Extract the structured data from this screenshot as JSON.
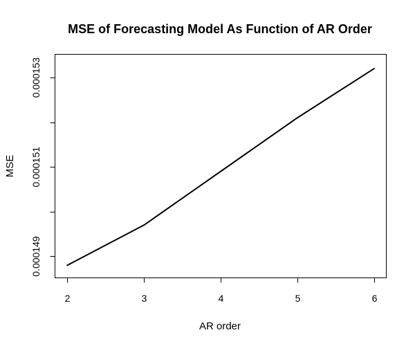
{
  "chart_data": {
    "type": "line",
    "title": "MSE of Forecasting Model As Function of AR Order",
    "xlabel": "AR order",
    "ylabel": "MSE",
    "x": [
      2,
      3,
      4,
      5,
      6
    ],
    "series": [
      {
        "values": [
          0.0001488,
          0.0001497,
          0.0001509,
          0.0001521,
          0.0001532
        ]
      }
    ],
    "xlim": [
      1.84,
      6.16
    ],
    "ylim": [
      0.00014852,
      0.00015352
    ],
    "xticks": [
      "2",
      "3",
      "4",
      "5",
      "6"
    ],
    "xtick_values": [
      2,
      3,
      4,
      5,
      6
    ],
    "yticks": [
      "0.000149",
      "0.000151",
      "0.000153"
    ],
    "ytick_values": [
      0.000149,
      0.000151,
      0.000153
    ],
    "yminor_tick_values": [
      0.00015,
      0.000152
    ],
    "grid": false,
    "line_color": "#000000"
  }
}
